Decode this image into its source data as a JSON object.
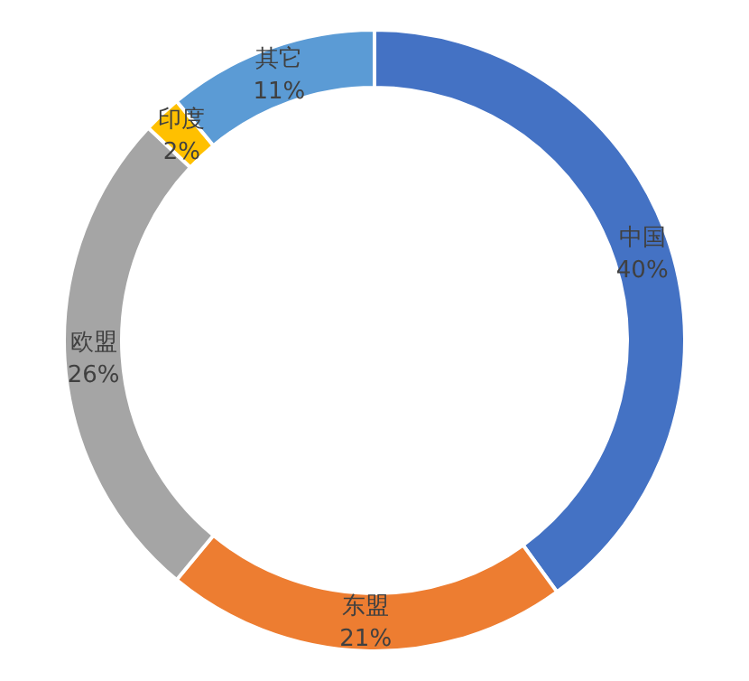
{
  "chart_data": {
    "type": "donut",
    "categories": [
      "中国",
      "东盟",
      "欧盟",
      "印度",
      "其它"
    ],
    "values": [
      40,
      21,
      26,
      2,
      11
    ],
    "colors": [
      "#4472c4",
      "#ed7d31",
      "#a5a5a5",
      "#ffc000",
      "#5b9bd5"
    ],
    "value_labels": [
      "40%",
      "21%",
      "26%",
      "2%",
      "11%"
    ],
    "legend": false
  }
}
